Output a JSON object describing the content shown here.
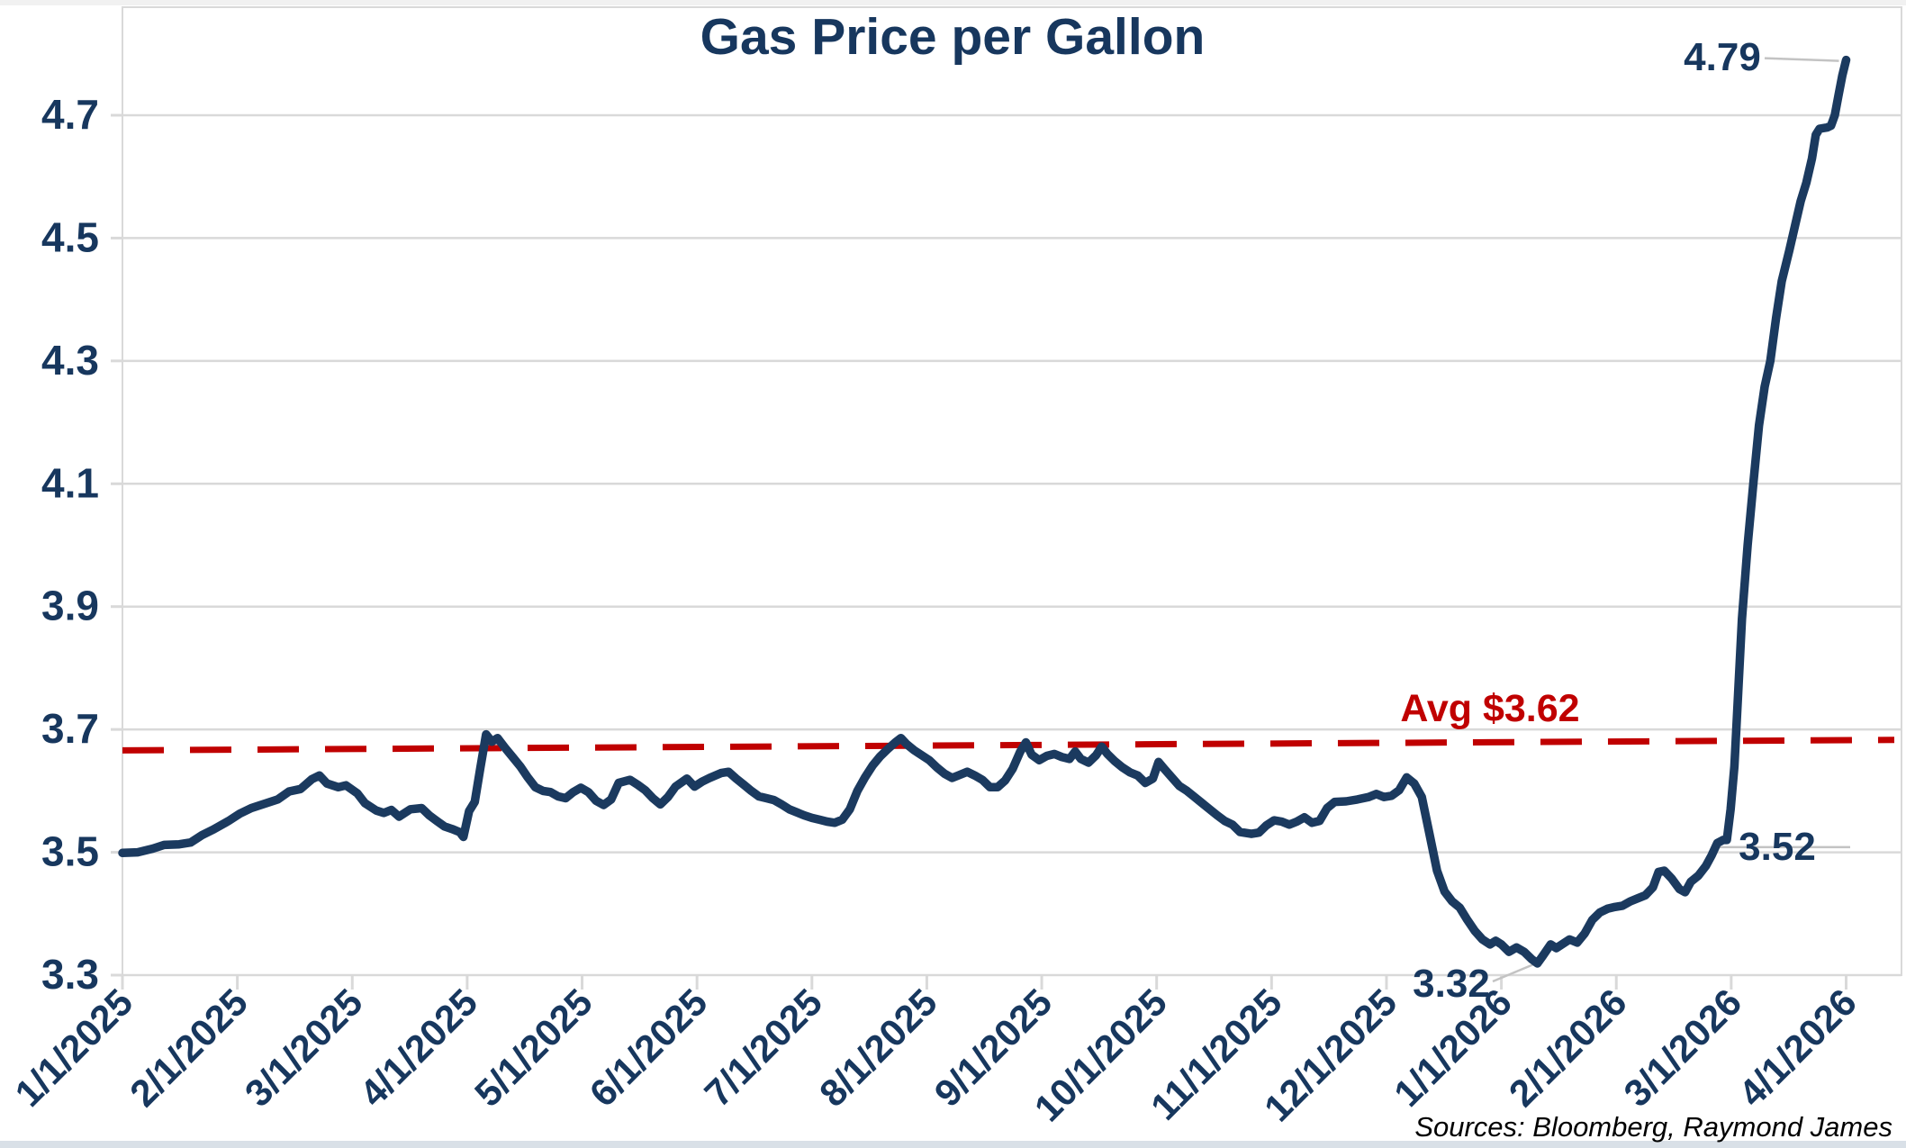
{
  "title": "Gas Price per Gallon",
  "source_note": "Sources: Bloomberg, Raymond James",
  "colors": {
    "line_navy": "#1b3a5f",
    "text_navy": "#17375e",
    "avg_red": "#c00000",
    "grid_gray": "#d9d9d9",
    "leader_gray": "#c3c3c3",
    "source_black": "#000000",
    "top_strip": "#f1f1f1",
    "bottom_strip": "#d9e0e7"
  },
  "chart_data": {
    "type": "line",
    "title": "Gas Price per Gallon",
    "xlabel": "",
    "ylabel": "",
    "grid": "horizontal",
    "legend": "none",
    "y_ticks": [
      3.3,
      3.5,
      3.7,
      3.9,
      4.1,
      4.3,
      4.5,
      4.7
    ],
    "ylim": [
      3.3,
      4.82
    ],
    "x_tick_labels": [
      "1/1/2025",
      "2/1/2025",
      "3/1/2025",
      "4/1/2025",
      "5/1/2025",
      "6/1/2025",
      "7/1/2025",
      "8/1/2025",
      "9/1/2025",
      "10/1/2025",
      "11/1/2025",
      "12/1/2025",
      "1/1/2026",
      "2/1/2026",
      "3/1/2026",
      "4/1/2026"
    ],
    "x_range_days": [
      0,
      455
    ],
    "avg_line": {
      "label": "Avg $3.62",
      "value": 3.62,
      "style": "dashed",
      "draw_start_value": 3.666,
      "draw_end_value": 3.683
    },
    "annotations": [
      {
        "text": "4.79",
        "anchor_day": 455,
        "anchor_value": 4.79
      },
      {
        "text": "3.52",
        "anchor_day": 422.5,
        "anchor_value": 3.52
      },
      {
        "text": "3.32",
        "anchor_day": 373.5,
        "anchor_value": 3.32
      }
    ],
    "series": [
      {
        "name": "Gas price per gallon",
        "points": [
          [
            0,
            3.499
          ],
          [
            4,
            3.5
          ],
          [
            8,
            3.506
          ],
          [
            11,
            3.512
          ],
          [
            15,
            3.513
          ],
          [
            18,
            3.516
          ],
          [
            21,
            3.528
          ],
          [
            24,
            3.537
          ],
          [
            28,
            3.551
          ],
          [
            31,
            3.563
          ],
          [
            34,
            3.572
          ],
          [
            38,
            3.58
          ],
          [
            41,
            3.586
          ],
          [
            44,
            3.599
          ],
          [
            47,
            3.603
          ],
          [
            50,
            3.619
          ],
          [
            52,
            3.625
          ],
          [
            54,
            3.612
          ],
          [
            57,
            3.606
          ],
          [
            59,
            3.609
          ],
          [
            62,
            3.596
          ],
          [
            64,
            3.58
          ],
          [
            67,
            3.568
          ],
          [
            69,
            3.564
          ],
          [
            71,
            3.569
          ],
          [
            73,
            3.558
          ],
          [
            76,
            3.57
          ],
          [
            79,
            3.572
          ],
          [
            81,
            3.56
          ],
          [
            83,
            3.551
          ],
          [
            85,
            3.542
          ],
          [
            87,
            3.538
          ],
          [
            89,
            3.533
          ],
          [
            90,
            3.525
          ],
          [
            91.5,
            3.567
          ],
          [
            93,
            3.582
          ],
          [
            94.5,
            3.638
          ],
          [
            96,
            3.692
          ],
          [
            97.5,
            3.68
          ],
          [
            99,
            3.686
          ],
          [
            101,
            3.67
          ],
          [
            103,
            3.655
          ],
          [
            105,
            3.64
          ],
          [
            107,
            3.622
          ],
          [
            109,
            3.606
          ],
          [
            111,
            3.6
          ],
          [
            113,
            3.598
          ],
          [
            115,
            3.591
          ],
          [
            117,
            3.588
          ],
          [
            119,
            3.598
          ],
          [
            121,
            3.605
          ],
          [
            123,
            3.598
          ],
          [
            125,
            3.584
          ],
          [
            127,
            3.577
          ],
          [
            129,
            3.586
          ],
          [
            131,
            3.613
          ],
          [
            134,
            3.618
          ],
          [
            136,
            3.61
          ],
          [
            138,
            3.601
          ],
          [
            140,
            3.588
          ],
          [
            142,
            3.578
          ],
          [
            144,
            3.59
          ],
          [
            146,
            3.607
          ],
          [
            149,
            3.62
          ],
          [
            151,
            3.607
          ],
          [
            153,
            3.615
          ],
          [
            155,
            3.621
          ],
          [
            158,
            3.629
          ],
          [
            160,
            3.631
          ],
          [
            162,
            3.62
          ],
          [
            164,
            3.61
          ],
          [
            166,
            3.6
          ],
          [
            168,
            3.591
          ],
          [
            170,
            3.588
          ],
          [
            172,
            3.585
          ],
          [
            174,
            3.578
          ],
          [
            176,
            3.57
          ],
          [
            178,
            3.565
          ],
          [
            180,
            3.56
          ],
          [
            182,
            3.556
          ],
          [
            184,
            3.553
          ],
          [
            186,
            3.55
          ],
          [
            188,
            3.548
          ],
          [
            190,
            3.553
          ],
          [
            192,
            3.57
          ],
          [
            194,
            3.6
          ],
          [
            196,
            3.622
          ],
          [
            198,
            3.641
          ],
          [
            200,
            3.656
          ],
          [
            202,
            3.668
          ],
          [
            204,
            3.679
          ],
          [
            205.5,
            3.686
          ],
          [
            207,
            3.676
          ],
          [
            209,
            3.666
          ],
          [
            211,
            3.658
          ],
          [
            213,
            3.65
          ],
          [
            215,
            3.638
          ],
          [
            217,
            3.628
          ],
          [
            219,
            3.621
          ],
          [
            221,
            3.626
          ],
          [
            223,
            3.631
          ],
          [
            225,
            3.625
          ],
          [
            227,
            3.618
          ],
          [
            229,
            3.606
          ],
          [
            231,
            3.606
          ],
          [
            233,
            3.617
          ],
          [
            235,
            3.636
          ],
          [
            237,
            3.664
          ],
          [
            238.5,
            3.679
          ],
          [
            240,
            3.659
          ],
          [
            242,
            3.65
          ],
          [
            244,
            3.657
          ],
          [
            246,
            3.66
          ],
          [
            248,
            3.655
          ],
          [
            250,
            3.652
          ],
          [
            251.5,
            3.664
          ],
          [
            253,
            3.652
          ],
          [
            255,
            3.646
          ],
          [
            257,
            3.658
          ],
          [
            258.5,
            3.672
          ],
          [
            260,
            3.66
          ],
          [
            262,
            3.648
          ],
          [
            264,
            3.638
          ],
          [
            266,
            3.63
          ],
          [
            268,
            3.625
          ],
          [
            270,
            3.613
          ],
          [
            272,
            3.62
          ],
          [
            273.5,
            3.647
          ],
          [
            275,
            3.636
          ],
          [
            277,
            3.622
          ],
          [
            279,
            3.608
          ],
          [
            281,
            3.6
          ],
          [
            283,
            3.59
          ],
          [
            285,
            3.58
          ],
          [
            287,
            3.57
          ],
          [
            289,
            3.56
          ],
          [
            291,
            3.551
          ],
          [
            293,
            3.545
          ],
          [
            295,
            3.533
          ],
          [
            298,
            3.53
          ],
          [
            300,
            3.532
          ],
          [
            302,
            3.544
          ],
          [
            304,
            3.552
          ],
          [
            306,
            3.55
          ],
          [
            308,
            3.545
          ],
          [
            310,
            3.55
          ],
          [
            312,
            3.557
          ],
          [
            314,
            3.548
          ],
          [
            316,
            3.551
          ],
          [
            318,
            3.572
          ],
          [
            320,
            3.582
          ],
          [
            323,
            3.583
          ],
          [
            326,
            3.586
          ],
          [
            329,
            3.59
          ],
          [
            331,
            3.595
          ],
          [
            333,
            3.59
          ],
          [
            335,
            3.592
          ],
          [
            337,
            3.601
          ],
          [
            339,
            3.622
          ],
          [
            341,
            3.612
          ],
          [
            343,
            3.59
          ],
          [
            345,
            3.53
          ],
          [
            347,
            3.47
          ],
          [
            349,
            3.436
          ],
          [
            351,
            3.42
          ],
          [
            353,
            3.41
          ],
          [
            355,
            3.39
          ],
          [
            357,
            3.372
          ],
          [
            359,
            3.358
          ],
          [
            361,
            3.35
          ],
          [
            362.5,
            3.356
          ],
          [
            364,
            3.35
          ],
          [
            366,
            3.338
          ],
          [
            368,
            3.345
          ],
          [
            370,
            3.338
          ],
          [
            372,
            3.326
          ],
          [
            373.5,
            3.319
          ],
          [
            375,
            3.332
          ],
          [
            377,
            3.35
          ],
          [
            378.5,
            3.344
          ],
          [
            380,
            3.35
          ],
          [
            382,
            3.358
          ],
          [
            384,
            3.353
          ],
          [
            386,
            3.368
          ],
          [
            388,
            3.39
          ],
          [
            390,
            3.402
          ],
          [
            392,
            3.408
          ],
          [
            394,
            3.411
          ],
          [
            396,
            3.413
          ],
          [
            398,
            3.42
          ],
          [
            400,
            3.425
          ],
          [
            402,
            3.43
          ],
          [
            404,
            3.443
          ],
          [
            405.5,
            3.468
          ],
          [
            407,
            3.47
          ],
          [
            409,
            3.457
          ],
          [
            411,
            3.44
          ],
          [
            412.5,
            3.435
          ],
          [
            414,
            3.452
          ],
          [
            416,
            3.462
          ],
          [
            418,
            3.478
          ],
          [
            419.5,
            3.495
          ],
          [
            421,
            3.515
          ],
          [
            422.5,
            3.52
          ],
          [
            423.5,
            3.52
          ],
          [
            424.5,
            3.57
          ],
          [
            425.5,
            3.64
          ],
          [
            426.5,
            3.76
          ],
          [
            427.5,
            3.88
          ],
          [
            429,
            4.0
          ],
          [
            430.5,
            4.1
          ],
          [
            432,
            4.195
          ],
          [
            433.5,
            4.258
          ],
          [
            435,
            4.3
          ],
          [
            436.5,
            4.37
          ],
          [
            438,
            4.43
          ],
          [
            440,
            4.48
          ],
          [
            441.5,
            4.52
          ],
          [
            443,
            4.56
          ],
          [
            444.5,
            4.59
          ],
          [
            446,
            4.63
          ],
          [
            447,
            4.668
          ],
          [
            448,
            4.678
          ],
          [
            450,
            4.68
          ],
          [
            451,
            4.683
          ],
          [
            452,
            4.7
          ],
          [
            453,
            4.733
          ],
          [
            454,
            4.765
          ],
          [
            455,
            4.79
          ]
        ]
      }
    ]
  }
}
